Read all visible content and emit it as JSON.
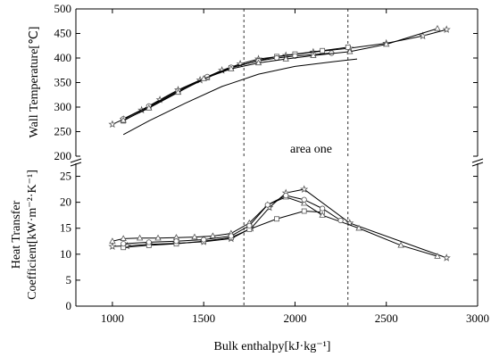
{
  "chart_data": {
    "type": "line",
    "xlabel": "Bulk enthalpy[kJ·kg⁻¹]",
    "xlim": [
      800,
      3000
    ],
    "xticks": [
      1000,
      1500,
      2000,
      2500,
      3000
    ],
    "area_lines_x": [
      1720,
      2290
    ],
    "annotation": "area one",
    "panels": [
      {
        "name": "top",
        "ylabel": "Wall Temperature[℃]",
        "ylim": [
          200,
          500
        ],
        "yticks": [
          200,
          250,
          300,
          350,
          400,
          450,
          500
        ],
        "series": [
          {
            "marker": "none",
            "x": [
              1060,
              1200,
              1400,
              1600,
              1800,
              2000,
              2200,
              2340
            ],
            "y": [
              244,
              272,
              308,
              342,
              367,
              383,
              392,
              398
            ]
          },
          {
            "marker": "star",
            "x": [
              1000,
              1060,
              1160,
              1260,
              1360,
              1480,
              1600,
              1700,
              1800,
              1950,
              2100,
              2300,
              2500,
              2700,
              2830
            ],
            "y": [
              265,
              275,
              294,
              315,
              335,
              355,
              375,
              388,
              398,
              405,
              412,
              420,
              430,
              445,
              458
            ]
          },
          {
            "marker": "square",
            "x": [
              1060,
              1200,
              1360,
              1520,
              1650,
              1800,
              1900,
              2000,
              2150,
              2290
            ],
            "y": [
              272,
              300,
              331,
              360,
              380,
              395,
              403,
              408,
              415,
              422
            ]
          },
          {
            "marker": "circle",
            "x": [
              1060,
              1200,
              1360,
              1520,
              1650,
              1800,
              1900,
              2000,
              2100,
              2200
            ],
            "y": [
              276,
              302,
              333,
              362,
              381,
              394,
              400,
              404,
              407,
              410
            ]
          },
          {
            "marker": "triangle",
            "x": [
              1060,
              1200,
              1360,
              1500,
              1650,
              1800,
              1950,
              2100,
              2300,
              2500,
              2780
            ],
            "y": [
              273,
              298,
              330,
              358,
              378,
              390,
              398,
              405,
              413,
              428,
              460
            ]
          }
        ]
      },
      {
        "name": "bottom",
        "ylabel": "Heat Transfer Coefficient[kW·m⁻²·K⁻¹]",
        "ylim": [
          0,
          27.5
        ],
        "yticks": [
          0,
          5,
          10,
          15,
          20,
          25
        ],
        "series": [
          {
            "marker": "star",
            "x": [
              1000,
              1080,
              1200,
              1350,
              1500,
              1650,
              1760,
              1860,
              1950,
              2050,
              2300,
              2830
            ],
            "y": [
              11.5,
              11.6,
              11.9,
              12.1,
              12.4,
              13.0,
              15.0,
              19.0,
              21.8,
              22.5,
              16.0,
              9.3
            ]
          },
          {
            "marker": "square",
            "x": [
              1060,
              1200,
              1350,
              1500,
              1650,
              1750,
              1900,
              2050,
              2150
            ],
            "y": [
              11.3,
              11.7,
              12.0,
              12.5,
              13.2,
              14.8,
              16.8,
              18.3,
              18.1
            ]
          },
          {
            "marker": "triangle",
            "x": [
              1000,
              1060,
              1150,
              1250,
              1350,
              1450,
              1550,
              1650,
              1750,
              1850,
              1950,
              2050,
              2150,
              2350,
              2580,
              2780
            ],
            "y": [
              12.5,
              13.0,
              13.1,
              13.1,
              13.2,
              13.3,
              13.5,
              14.0,
              16.0,
              19.5,
              21.0,
              19.8,
              17.5,
              15.0,
              11.7,
              9.6
            ]
          },
          {
            "marker": "circle",
            "x": [
              1060,
              1200,
              1350,
              1500,
              1650,
              1750,
              1850,
              1950,
              2050,
              2150,
              2250
            ],
            "y": [
              12.0,
              12.3,
              12.5,
              12.8,
              13.5,
              15.5,
              19.5,
              21.3,
              20.5,
              18.8,
              16.5
            ]
          }
        ]
      }
    ]
  }
}
